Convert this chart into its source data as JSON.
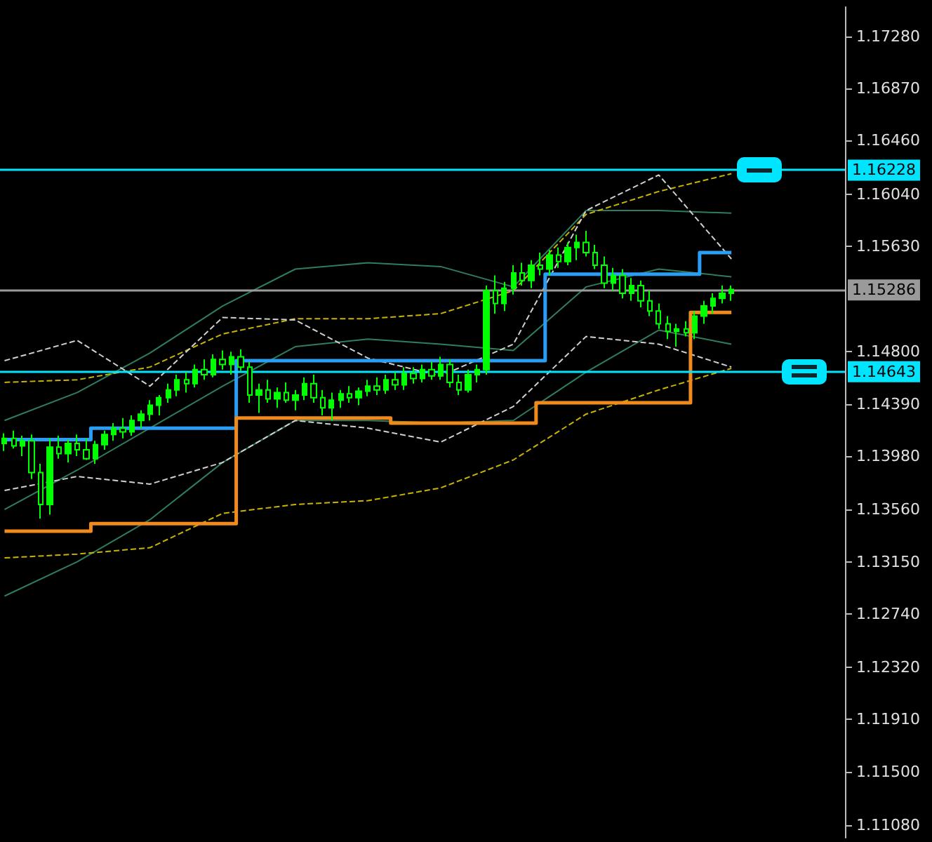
{
  "chart_data": {
    "type": "candlestick",
    "color": "#00ff00",
    "categories": [
      null,
      null,
      null,
      null,
      null,
      null,
      null,
      null,
      null,
      null,
      null,
      null,
      null,
      null,
      null,
      null,
      null,
      null,
      null,
      null,
      null,
      null,
      null,
      null,
      null,
      null,
      null,
      null,
      null,
      null,
      null,
      null,
      null,
      null,
      null,
      null,
      null,
      null,
      null,
      null,
      null,
      null,
      null,
      null,
      null,
      null,
      null,
      null,
      null,
      null,
      null,
      null,
      null,
      null,
      null,
      null,
      null,
      null,
      null,
      null,
      null,
      null,
      null,
      null,
      null,
      null,
      null,
      null,
      null,
      null,
      null,
      null,
      null,
      null,
      null,
      null,
      null,
      null,
      null,
      null,
      null
    ],
    "ohlc": [
      [
        1.1408,
        1.1416,
        1.1402,
        1.1412
      ],
      [
        1.1412,
        1.1418,
        1.1404,
        1.1406
      ],
      [
        1.1406,
        1.1414,
        1.1398,
        1.141
      ],
      [
        1.141,
        1.1415,
        1.138,
        1.1385
      ],
      [
        1.1385,
        1.1392,
        1.1349,
        1.136
      ],
      [
        1.136,
        1.1412,
        1.1352,
        1.1405
      ],
      [
        1.1405,
        1.1414,
        1.1396,
        1.14
      ],
      [
        1.14,
        1.1411,
        1.1393,
        1.1408
      ],
      [
        1.1408,
        1.1415,
        1.1398,
        1.1403
      ],
      [
        1.1403,
        1.1412,
        1.1395,
        1.1396
      ],
      [
        1.1396,
        1.141,
        1.1392,
        1.1407
      ],
      [
        1.1407,
        1.1418,
        1.1403,
        1.1415
      ],
      [
        1.1415,
        1.1424,
        1.141,
        1.142
      ],
      [
        1.142,
        1.1428,
        1.1412,
        1.1417
      ],
      [
        1.1417,
        1.143,
        1.1414,
        1.1426
      ],
      [
        1.1426,
        1.1434,
        1.142,
        1.1431
      ],
      [
        1.1431,
        1.1442,
        1.1426,
        1.1438
      ],
      [
        1.1438,
        1.1446,
        1.143,
        1.1444
      ],
      [
        1.1444,
        1.1455,
        1.144,
        1.145
      ],
      [
        1.145,
        1.1462,
        1.1445,
        1.1458
      ],
      [
        1.1458,
        1.1464,
        1.1448,
        1.1455
      ],
      [
        1.1455,
        1.147,
        1.1452,
        1.1466
      ],
      [
        1.1466,
        1.1474,
        1.1458,
        1.1462
      ],
      [
        1.1462,
        1.1478,
        1.146,
        1.1474
      ],
      [
        1.1474,
        1.1481,
        1.1466,
        1.147
      ],
      [
        1.147,
        1.148,
        1.1462,
        1.1476
      ],
      [
        1.1476,
        1.1482,
        1.1465,
        1.1468
      ],
      [
        1.1468,
        1.1472,
        1.144,
        1.1446
      ],
      [
        1.1446,
        1.1455,
        1.1432,
        1.145
      ],
      [
        1.145,
        1.1458,
        1.144,
        1.1443
      ],
      [
        1.1443,
        1.1452,
        1.1436,
        1.1448
      ],
      [
        1.1448,
        1.1456,
        1.144,
        1.1442
      ],
      [
        1.1442,
        1.145,
        1.1434,
        1.1446
      ],
      [
        1.1446,
        1.146,
        1.1442,
        1.1455
      ],
      [
        1.1455,
        1.1462,
        1.144,
        1.1444
      ],
      [
        1.1444,
        1.145,
        1.143,
        1.1436
      ],
      [
        1.1436,
        1.1448,
        1.1426,
        1.1442
      ],
      [
        1.1442,
        1.145,
        1.1436,
        1.1447
      ],
      [
        1.1447,
        1.1453,
        1.144,
        1.1444
      ],
      [
        1.1444,
        1.1452,
        1.1438,
        1.1449
      ],
      [
        1.1449,
        1.1458,
        1.1445,
        1.1453
      ],
      [
        1.1453,
        1.146,
        1.1446,
        1.145
      ],
      [
        1.145,
        1.1462,
        1.1447,
        1.1458
      ],
      [
        1.1458,
        1.1464,
        1.145,
        1.1454
      ],
      [
        1.1454,
        1.1468,
        1.145,
        1.1463
      ],
      [
        1.1463,
        1.1468,
        1.1455,
        1.1459
      ],
      [
        1.1459,
        1.147,
        1.1456,
        1.1466
      ],
      [
        1.1466,
        1.1472,
        1.1458,
        1.1461
      ],
      [
        1.1461,
        1.1476,
        1.1458,
        1.147
      ],
      [
        1.147,
        1.1474,
        1.1452,
        1.1456
      ],
      [
        1.1456,
        1.1462,
        1.1446,
        1.145
      ],
      [
        1.145,
        1.1466,
        1.1448,
        1.1462
      ],
      [
        1.1462,
        1.147,
        1.1456,
        1.1466
      ],
      [
        1.1466,
        1.1532,
        1.1462,
        1.1528
      ],
      [
        1.1528,
        1.154,
        1.151,
        1.1518
      ],
      [
        1.1518,
        1.1535,
        1.1512,
        1.153
      ],
      [
        1.153,
        1.1548,
        1.1525,
        1.1542
      ],
      [
        1.1542,
        1.155,
        1.1532,
        1.1536
      ],
      [
        1.1536,
        1.1552,
        1.153,
        1.1548
      ],
      [
        1.1548,
        1.1558,
        1.154,
        1.1545
      ],
      [
        1.1545,
        1.156,
        1.154,
        1.1556
      ],
      [
        1.1556,
        1.1562,
        1.1546,
        1.1551
      ],
      [
        1.1551,
        1.1566,
        1.1548,
        1.1562
      ],
      [
        1.1562,
        1.1572,
        1.1552,
        1.1566
      ],
      [
        1.1566,
        1.1575,
        1.1555,
        1.1558
      ],
      [
        1.1558,
        1.1564,
        1.1545,
        1.1548
      ],
      [
        1.1548,
        1.1555,
        1.153,
        1.1534
      ],
      [
        1.1534,
        1.1546,
        1.1528,
        1.154
      ],
      [
        1.154,
        1.1545,
        1.1522,
        1.1526
      ],
      [
        1.1526,
        1.1538,
        1.152,
        1.1532
      ],
      [
        1.1532,
        1.1536,
        1.1515,
        1.152
      ],
      [
        1.152,
        1.1528,
        1.1508,
        1.1512
      ],
      [
        1.1512,
        1.1518,
        1.1498,
        1.1502
      ],
      [
        1.1502,
        1.1508,
        1.149,
        1.1496
      ],
      [
        1.1496,
        1.1502,
        1.1484,
        1.1498
      ],
      [
        1.1498,
        1.1504,
        1.1492,
        1.1495
      ],
      [
        1.1495,
        1.1512,
        1.149,
        1.1508
      ],
      [
        1.1508,
        1.152,
        1.1502,
        1.1516
      ],
      [
        1.1516,
        1.1526,
        1.151,
        1.1522
      ],
      [
        1.1522,
        1.1532,
        1.1518,
        1.1526
      ],
      [
        1.1526,
        1.1532,
        1.152,
        1.1529
      ]
    ],
    "series": [
      {
        "type": "line",
        "color": "#2f7d5b",
        "line_style": "solid",
        "values": [
          1.1426,
          null,
          null,
          null,
          null,
          null,
          null,
          null,
          1.1448,
          null,
          null,
          null,
          null,
          null,
          null,
          null,
          1.1479,
          null,
          null,
          null,
          null,
          null,
          null,
          null,
          1.1516,
          null,
          null,
          null,
          null,
          null,
          null,
          null,
          1.1545,
          null,
          null,
          null,
          null,
          null,
          null,
          null,
          1.155,
          null,
          null,
          null,
          null,
          null,
          null,
          null,
          1.1547,
          null,
          null,
          null,
          null,
          null,
          null,
          null,
          1.1531,
          null,
          null,
          null,
          null,
          null,
          null,
          null,
          1.1591,
          null,
          null,
          null,
          null,
          null,
          null,
          null,
          1.1591,
          null,
          null,
          null,
          null,
          null,
          null,
          null,
          1.1589
        ]
      },
      {
        "type": "line",
        "color": "#2f7d5b",
        "line_style": "solid",
        "values": [
          1.1356,
          null,
          null,
          null,
          null,
          null,
          null,
          null,
          1.1387,
          null,
          null,
          null,
          null,
          null,
          null,
          null,
          1.142,
          null,
          null,
          null,
          null,
          null,
          null,
          null,
          1.1453,
          null,
          null,
          null,
          null,
          null,
          null,
          null,
          1.1484,
          null,
          null,
          null,
          null,
          null,
          null,
          null,
          1.149,
          null,
          null,
          null,
          null,
          null,
          null,
          null,
          1.1486,
          null,
          null,
          null,
          null,
          null,
          null,
          null,
          1.1481,
          null,
          null,
          null,
          null,
          null,
          null,
          null,
          1.1531,
          null,
          null,
          null,
          null,
          null,
          null,
          null,
          1.1545,
          null,
          null,
          null,
          null,
          null,
          null,
          null,
          1.1539
        ]
      },
      {
        "type": "line",
        "color": "#2f7d5b",
        "line_style": "solid",
        "values": [
          1.1288,
          null,
          null,
          null,
          null,
          null,
          null,
          null,
          1.1315,
          null,
          null,
          null,
          null,
          null,
          null,
          null,
          1.1348,
          null,
          null,
          null,
          null,
          null,
          null,
          null,
          1.1393,
          null,
          null,
          null,
          null,
          null,
          null,
          null,
          1.1426,
          null,
          null,
          null,
          null,
          null,
          null,
          null,
          1.1426,
          null,
          null,
          null,
          null,
          null,
          null,
          null,
          1.1424,
          null,
          null,
          null,
          null,
          null,
          null,
          null,
          1.1426,
          null,
          null,
          null,
          null,
          null,
          null,
          null,
          1.1464,
          null,
          null,
          null,
          null,
          null,
          null,
          null,
          1.1497,
          null,
          null,
          null,
          null,
          null,
          null,
          null,
          1.1486
        ]
      },
      {
        "type": "line",
        "color": "#c8b400",
        "line_style": "dashed",
        "values": [
          1.1456,
          null,
          null,
          null,
          null,
          null,
          null,
          null,
          1.1458,
          null,
          null,
          null,
          null,
          null,
          null,
          null,
          1.1468,
          null,
          null,
          null,
          null,
          null,
          null,
          null,
          1.1494,
          null,
          null,
          null,
          null,
          null,
          null,
          null,
          1.1506,
          null,
          null,
          null,
          null,
          null,
          null,
          null,
          1.1506,
          null,
          null,
          null,
          null,
          null,
          null,
          null,
          1.151,
          null,
          null,
          null,
          null,
          null,
          null,
          null,
          1.1528,
          null,
          null,
          null,
          null,
          null,
          null,
          null,
          1.1588,
          null,
          null,
          null,
          null,
          null,
          null,
          null,
          1.1606,
          null,
          null,
          null,
          null,
          null,
          null,
          null,
          1.162
        ]
      },
      {
        "type": "line",
        "color": "#c8b400",
        "line_style": "dashed",
        "values": [
          1.1318,
          null,
          null,
          null,
          null,
          null,
          null,
          null,
          1.1321,
          null,
          null,
          null,
          null,
          null,
          null,
          null,
          1.1326,
          null,
          null,
          null,
          null,
          null,
          null,
          null,
          1.1353,
          null,
          null,
          null,
          null,
          null,
          null,
          null,
          1.136,
          null,
          null,
          null,
          null,
          null,
          null,
          null,
          1.1363,
          null,
          null,
          null,
          null,
          null,
          null,
          null,
          1.1373,
          null,
          null,
          null,
          null,
          null,
          null,
          null,
          1.1395,
          null,
          null,
          null,
          null,
          null,
          null,
          null,
          1.1431,
          null,
          null,
          null,
          null,
          null,
          null,
          null,
          1.145,
          null,
          null,
          null,
          null,
          null,
          null,
          null,
          1.1467
        ]
      },
      {
        "type": "line",
        "color": "#d0d0d0",
        "line_style": "dashed",
        "values": [
          1.1473,
          null,
          null,
          null,
          null,
          null,
          null,
          null,
          1.1489,
          null,
          null,
          null,
          null,
          null,
          null,
          null,
          1.1453,
          null,
          null,
          null,
          null,
          null,
          null,
          null,
          1.1507,
          null,
          null,
          null,
          null,
          null,
          null,
          null,
          1.1505,
          null,
          null,
          null,
          null,
          null,
          null,
          null,
          1.1475,
          null,
          null,
          null,
          null,
          null,
          null,
          null,
          1.1461,
          null,
          null,
          null,
          null,
          null,
          null,
          null,
          1.1486,
          null,
          null,
          null,
          null,
          null,
          null,
          null,
          1.1591,
          null,
          null,
          null,
          null,
          null,
          null,
          null,
          1.1619,
          null,
          null,
          null,
          null,
          null,
          null,
          null,
          1.1553
        ]
      },
      {
        "type": "line",
        "color": "#d0d0d0",
        "line_style": "dashed",
        "values": [
          1.1371,
          null,
          null,
          null,
          null,
          null,
          null,
          null,
          1.1382,
          null,
          null,
          null,
          null,
          null,
          null,
          null,
          1.1376,
          null,
          null,
          null,
          null,
          null,
          null,
          null,
          1.1393,
          null,
          null,
          null,
          null,
          null,
          null,
          null,
          1.1426,
          null,
          null,
          null,
          null,
          null,
          null,
          null,
          1.142,
          null,
          null,
          null,
          null,
          null,
          null,
          null,
          1.1409,
          null,
          null,
          null,
          null,
          null,
          null,
          null,
          1.1437,
          null,
          null,
          null,
          null,
          null,
          null,
          null,
          1.1492,
          null,
          null,
          null,
          null,
          null,
          null,
          null,
          1.1486,
          null,
          null,
          null,
          null,
          null,
          null,
          null,
          1.1468
        ]
      },
      {
        "type": "step",
        "color": "#2a9df4",
        "line_style": "solid",
        "values": [
          1.1411,
          1.1411,
          1.1411,
          1.1411,
          1.1411,
          1.1411,
          1.1411,
          1.1411,
          1.1411,
          1.1411,
          1.142,
          1.142,
          1.142,
          1.142,
          1.142,
          1.142,
          1.142,
          1.142,
          1.142,
          1.142,
          1.142,
          1.142,
          1.142,
          1.142,
          1.142,
          1.142,
          1.1473,
          1.1473,
          1.1473,
          1.1473,
          1.1473,
          1.1473,
          1.1473,
          1.1473,
          1.1473,
          1.1473,
          1.1473,
          1.1473,
          1.1473,
          1.1473,
          1.1473,
          1.1473,
          1.1473,
          1.1473,
          1.1473,
          1.1473,
          1.1473,
          1.1473,
          1.1473,
          1.1473,
          1.1473,
          1.1473,
          1.1473,
          1.1473,
          1.1473,
          1.1473,
          1.1473,
          1.1473,
          1.1473,
          1.1473,
          1.1541,
          1.1541,
          1.1541,
          1.1541,
          1.1541,
          1.1541,
          1.1541,
          1.1541,
          1.1541,
          1.1541,
          1.1541,
          1.1541,
          1.1541,
          1.1541,
          1.1541,
          1.1541,
          1.1541,
          1.1558,
          1.1558,
          1.1558,
          1.1558
        ]
      },
      {
        "type": "step",
        "color": "#f08a1c",
        "line_style": "solid",
        "values": [
          1.1339,
          1.1339,
          1.1339,
          1.1339,
          1.1339,
          1.1339,
          1.1339,
          1.1339,
          1.1339,
          1.1339,
          1.1345,
          1.1345,
          1.1345,
          1.1345,
          1.1345,
          1.1345,
          1.1345,
          1.1345,
          1.1345,
          1.1345,
          1.1345,
          1.1345,
          1.1345,
          1.1345,
          1.1345,
          1.1345,
          1.1428,
          1.1428,
          1.1428,
          1.1428,
          1.1428,
          1.1428,
          1.1428,
          1.1428,
          1.1428,
          1.1428,
          1.1428,
          1.1428,
          1.1428,
          1.1428,
          1.1428,
          1.1428,
          1.1428,
          1.1424,
          1.1424,
          1.1424,
          1.1424,
          1.1424,
          1.1424,
          1.1424,
          1.1424,
          1.1424,
          1.1424,
          1.1424,
          1.1424,
          1.1424,
          1.1424,
          1.1424,
          1.1424,
          1.144,
          1.144,
          1.144,
          1.144,
          1.144,
          1.144,
          1.144,
          1.144,
          1.144,
          1.144,
          1.144,
          1.144,
          1.144,
          1.144,
          1.144,
          1.144,
          1.144,
          1.1511,
          1.1511,
          1.1511,
          1.1511,
          1.1511
        ]
      }
    ],
    "ref_lines": [
      {
        "axis": "y",
        "value": 1.16228,
        "label": "1.16228",
        "color": "#00e5ff"
      },
      {
        "axis": "y",
        "value": 1.15286,
        "label": "1.15286",
        "color": "#9a9a9a"
      },
      {
        "axis": "y",
        "value": 1.14643,
        "label": "1.14643",
        "color": "#00e5ff"
      }
    ],
    "ylim": [
      1.1098,
      1.1751
    ],
    "yticks": [
      {
        "value": 1.1728,
        "label": "1.17280"
      },
      {
        "value": 1.1687,
        "label": "1.16870"
      },
      {
        "value": 1.1646,
        "label": "1.16460"
      },
      {
        "value": 1.1604,
        "label": "1.16040"
      },
      {
        "value": 1.1563,
        "label": "1.15630"
      },
      {
        "value": 1.148,
        "label": "1.14800"
      },
      {
        "value": 1.1439,
        "label": "1.14390"
      },
      {
        "value": 1.1398,
        "label": "1.13980"
      },
      {
        "value": 1.1356,
        "label": "1.13560"
      },
      {
        "value": 1.1315,
        "label": "1.13150"
      },
      {
        "value": 1.1274,
        "label": "1.12740"
      },
      {
        "value": 1.1232,
        "label": "1.12320"
      },
      {
        "value": 1.1191,
        "label": "1.11910"
      },
      {
        "value": 1.115,
        "label": "1.11500"
      },
      {
        "value": 1.1108,
        "label": "1.11080"
      }
    ],
    "tick_labels": "y",
    "grid": false
  }
}
